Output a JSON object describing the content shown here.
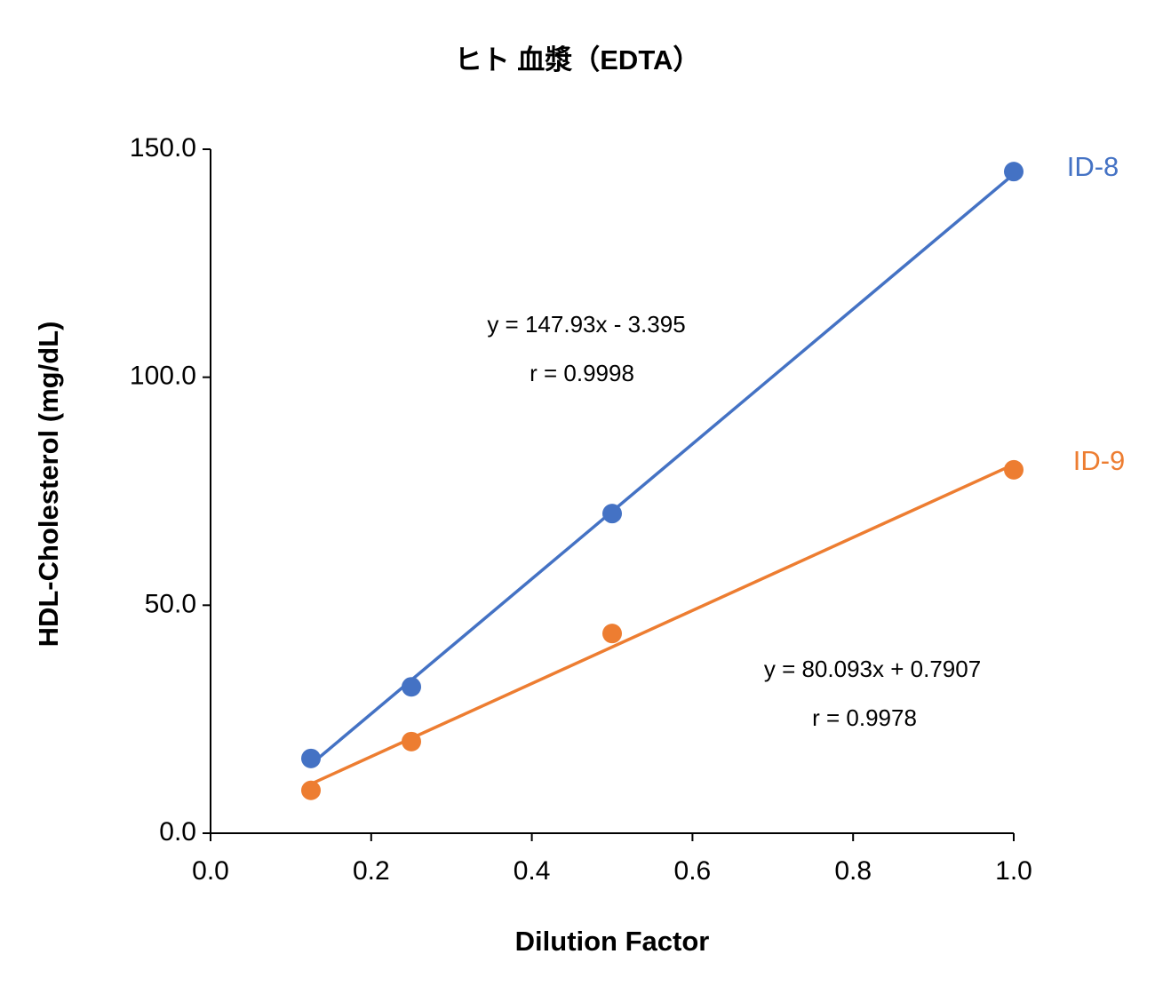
{
  "chart_data": {
    "type": "scatter",
    "title": "ヒト 血漿（EDTA）",
    "x_label": "Dilution Factor",
    "y_label": "HDL-Cholesterol (mg/dL)",
    "x": [
      0.125,
      0.25,
      0.5,
      1.0
    ],
    "series": [
      {
        "name": "ID-8",
        "color": "#4472c4",
        "values": [
          16.4,
          32.1,
          70.1,
          145.1
        ],
        "trendline": {
          "slope": 147.93,
          "intercept": -3.395
        },
        "equation": "y = 147.93x - 3.395",
        "r": "r = 0.9998"
      },
      {
        "name": "ID-9",
        "color": "#ed7d31",
        "values": [
          9.4,
          20.1,
          43.8,
          79.7
        ],
        "trendline": {
          "slope": 80.093,
          "intercept": 0.7907
        },
        "equation": "y = 80.093x + 0.7907",
        "r": "r = 0.9978"
      }
    ],
    "xlim": [
      0,
      1
    ],
    "xticks": [
      {
        "value": 0,
        "label": "0.0"
      },
      {
        "value": 0.2,
        "label": "0.2"
      },
      {
        "value": 0.4,
        "label": "0.4"
      },
      {
        "value": 0.6,
        "label": "0.6"
      },
      {
        "value": 0.8,
        "label": "0.8"
      },
      {
        "value": 1,
        "label": "1.0"
      }
    ],
    "ylim": [
      0,
      150
    ],
    "yticks": [
      {
        "value": 0,
        "label": "0.0"
      },
      {
        "value": 50,
        "label": "50.0"
      },
      {
        "value": 100,
        "label": "100.0"
      },
      {
        "value": 150,
        "label": "150.0"
      }
    ],
    "grid": false
  }
}
